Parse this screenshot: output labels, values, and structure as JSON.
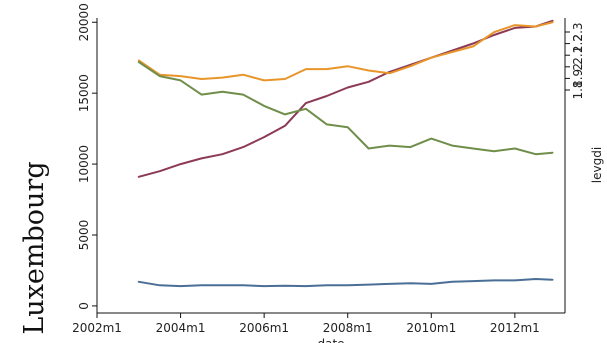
{
  "chart_data": {
    "type": "line",
    "side_title": "Luxembourg",
    "xlabel": "date",
    "ylabel_right": "levgdi",
    "x_ticks": [
      "2002m1",
      "2004m1",
      "2006m1",
      "2008m1",
      "2010m1",
      "2012m1"
    ],
    "y_ticks": [
      "0",
      "5000",
      "10000",
      "15000",
      "20000"
    ],
    "y_right_ticks": [
      "1.8",
      "1.9",
      "2",
      "2.1",
      "2.2",
      "2.3"
    ],
    "xlim": [
      2002.0,
      2013.2
    ],
    "ylim": [
      -500,
      20300
    ],
    "y_right_lim": [
      1.8,
      2.3
    ],
    "grid": false,
    "x": [
      2003.0,
      2003.5,
      2004.0,
      2004.5,
      2005.0,
      2005.5,
      2006.0,
      2006.5,
      2007.0,
      2007.5,
      2008.0,
      2008.5,
      2009.0,
      2009.5,
      2010.0,
      2010.5,
      2011.0,
      2011.5,
      2012.0,
      2012.5,
      2012.9
    ],
    "series": [
      {
        "color": "#4a6f96",
        "values": [
          1700,
          1450,
          1400,
          1450,
          1450,
          1450,
          1400,
          1420,
          1400,
          1450,
          1450,
          1500,
          1550,
          1600,
          1550,
          1700,
          1750,
          1800,
          1800,
          1900,
          1850
        ]
      },
      {
        "color": "#8c3a55",
        "values": [
          9100,
          9500,
          10000,
          10400,
          10700,
          11200,
          11900,
          12700,
          14300,
          14800,
          15400,
          15800,
          16500,
          17000,
          17500,
          18000,
          18500,
          19100,
          19600,
          19700,
          20100
        ]
      },
      {
        "color": "#e8952a",
        "values": [
          17300,
          16300,
          16200,
          16000,
          16100,
          16300,
          15900,
          16000,
          16700,
          16700,
          16900,
          16600,
          16400,
          16900,
          17500,
          17900,
          18300,
          19300,
          19800,
          19700,
          20000
        ]
      },
      {
        "color": "#6f8e4a",
        "values": [
          17200,
          16200,
          15900,
          14900,
          15100,
          14900,
          14100,
          13500,
          13900,
          12800,
          12600,
          11100,
          11300,
          11200,
          11800,
          11300,
          11100,
          10900,
          11100,
          10700,
          10800
        ]
      }
    ]
  }
}
